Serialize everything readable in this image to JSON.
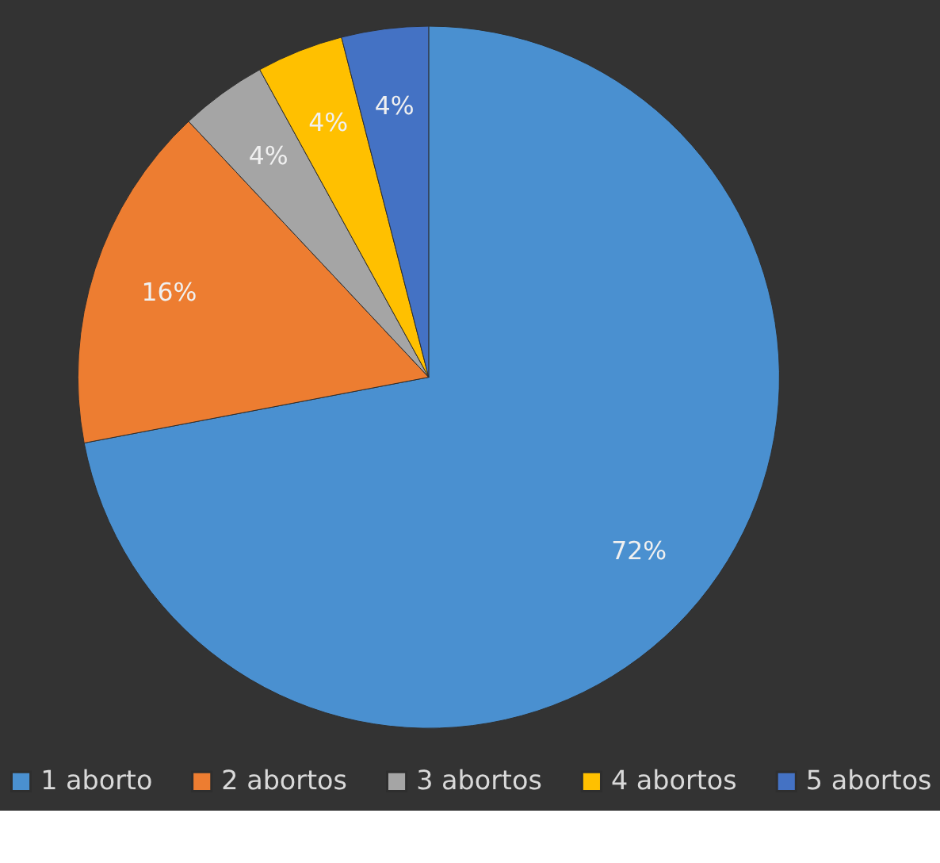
{
  "chart_data": {
    "type": "pie",
    "categories": [
      "1 aborto",
      "2 abortos",
      "3 abortos",
      "4 abortos",
      "5 abortos"
    ],
    "values": [
      72,
      16,
      4,
      4,
      4
    ],
    "colors": [
      "#4a90d0",
      "#ed7d31",
      "#a5a5a5",
      "#ffc000",
      "#4472c4"
    ],
    "value_labels": [
      "72%",
      "16%",
      "4%",
      "4%",
      "4%"
    ],
    "legend": "bottom"
  }
}
